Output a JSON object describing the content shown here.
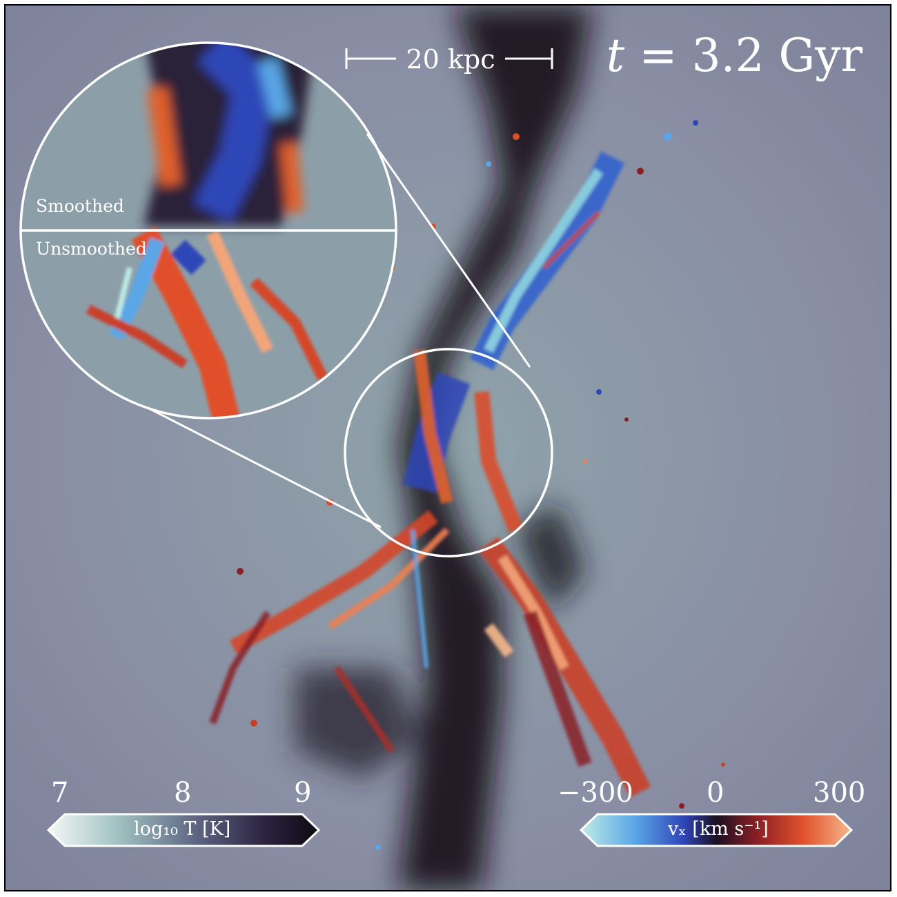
{
  "annotations": {
    "time_variable": "t",
    "time_value": "= 3.2 Gyr",
    "scale_bar": "20 kpc",
    "smoothed": "Smoothed",
    "unsmoothed": "Unsmoothed"
  },
  "colorbars": {
    "temperature": {
      "label": "log₁₀ T [K]",
      "ticks": [
        "7",
        "8",
        "9"
      ],
      "colors": [
        "#f4f7f6",
        "#a3c4c4",
        "#5d6482",
        "#2c2340",
        "#0c0a10"
      ]
    },
    "velocity": {
      "label": "vₓ [km s⁻¹]",
      "ticks": [
        "−300",
        "0",
        "300"
      ],
      "colors": [
        "#bfece6",
        "#5aa6e6",
        "#2f46b8",
        "#1a1022",
        "#8a1f24",
        "#e0502b",
        "#f6b88c"
      ]
    }
  },
  "colors": {
    "background_gas": "#8a8fa5",
    "lines": "#ffffff"
  }
}
